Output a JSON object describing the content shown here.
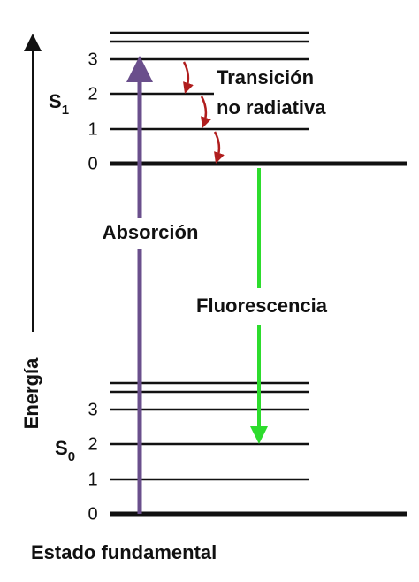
{
  "axis_label": "Energía",
  "states": [
    {
      "name": "S",
      "subscript": "1",
      "levels": [
        "0",
        "1",
        "2",
        "3"
      ]
    },
    {
      "name": "S",
      "subscript": "0",
      "levels": [
        "0",
        "1",
        "2",
        "3"
      ]
    }
  ],
  "labels": {
    "transition": [
      "Transición",
      "no radiativa"
    ],
    "absorption": "Absorción",
    "fluorescence": "Fluorescencia",
    "ground_state": "Estado fundamental"
  }
}
